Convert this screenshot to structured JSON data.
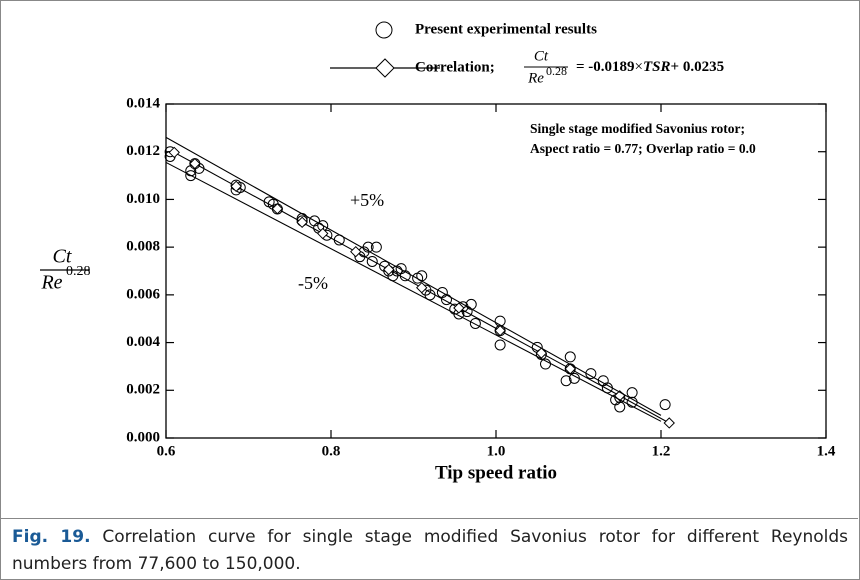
{
  "chart_data": {
    "type": "scatter",
    "x_label": "Tip speed ratio",
    "y_label": {
      "numerator": "Ct",
      "denominator": "Re",
      "exponent": "0.28"
    },
    "legend_formula": {
      "numerator": "Ct",
      "denominator": "Re",
      "exponent": "0.28",
      "rhs_parts": [
        "= -0.0189",
        "×",
        "TSR",
        "+ 0.0235"
      ]
    },
    "annotation_lines": [
      "Single stage modified Savonius rotor;",
      "Aspect ratio = 0.77; Overlap ratio = 0.0"
    ],
    "xlim": [
      0.6,
      1.4
    ],
    "ylim": [
      0,
      0.014
    ],
    "xticks": [
      0.6,
      0.8,
      {
        "value": 1.0,
        "label": "1.0"
      },
      1.2,
      1.4
    ],
    "yticks": [
      {
        "value": 0,
        "label": "0.000"
      },
      {
        "value": 0.002,
        "label": "0.002"
      },
      {
        "value": 0.004,
        "label": "0.004"
      },
      {
        "value": 0.006,
        "label": "0.006"
      },
      {
        "value": 0.008,
        "label": "0.008"
      },
      {
        "value": 0.01,
        "label": "0.010"
      },
      {
        "value": 0.012,
        "label": "0.012"
      },
      {
        "value": 0.014,
        "label": "0.014"
      }
    ],
    "series": [
      {
        "name": "Present experimental results",
        "style": "markers",
        "color": "#000000",
        "x": [
          0.605,
          0.605,
          0.63,
          0.63,
          0.635,
          0.64,
          0.685,
          0.685,
          0.69,
          0.725,
          0.73,
          0.735,
          0.765,
          0.765,
          0.78,
          0.785,
          0.79,
          0.795,
          0.81,
          0.835,
          0.84,
          0.845,
          0.855,
          0.85,
          0.865,
          0.87,
          0.875,
          0.88,
          0.885,
          0.89,
          0.905,
          0.91,
          0.915,
          0.92,
          0.935,
          0.94,
          0.95,
          0.955,
          0.96,
          0.965,
          0.97,
          0.975,
          1.005,
          1.005,
          1.005,
          1.05,
          1.055,
          1.06,
          1.085,
          1.09,
          1.09,
          1.095,
          1.115,
          1.13,
          1.135,
          1.145,
          1.15,
          1.15,
          1.165,
          1.165,
          1.205
        ],
        "values": [
          0.0118,
          0.012,
          0.011,
          0.0112,
          0.0115,
          0.0113,
          0.0104,
          0.0106,
          0.0105,
          0.0099,
          0.0098,
          0.0096,
          0.0091,
          0.0092,
          0.0091,
          0.0088,
          0.0089,
          0.0085,
          0.0083,
          0.0076,
          0.0078,
          0.008,
          0.008,
          0.0074,
          0.0072,
          0.007,
          0.0068,
          0.007,
          0.0071,
          0.0068,
          0.0067,
          0.0068,
          0.0062,
          0.006,
          0.0061,
          0.0058,
          0.0054,
          0.0052,
          0.0055,
          0.0053,
          0.0056,
          0.0048,
          0.0049,
          0.0045,
          0.0039,
          0.0038,
          0.0035,
          0.0031,
          0.0024,
          0.0034,
          0.0029,
          0.0025,
          0.0027,
          0.0024,
          0.0021,
          0.0016,
          0.0013,
          0.0017,
          0.0019,
          0.0015,
          0.0014
        ]
      },
      {
        "name": "Correlation;",
        "style": "line-markers",
        "color": "#000000",
        "x": [
          0.61,
          0.635,
          0.685,
          0.735,
          0.765,
          0.79,
          0.83,
          0.87,
          0.91,
          0.955,
          1.005,
          1.055,
          1.09,
          1.15,
          1.21
        ],
        "values": [
          0.01197,
          0.0115,
          0.01055,
          0.00961,
          0.00904,
          0.00857,
          0.00781,
          0.00706,
          0.0063,
          0.00545,
          0.0045,
          0.00356,
          0.0029,
          0.00177,
          0.00063
        ]
      },
      {
        "name": "+5%",
        "style": "line",
        "color": "#000000",
        "x": [
          0.6,
          1.2
        ],
        "values": [
          0.0126,
          0.00095
        ]
      },
      {
        "name": "-5%",
        "style": "line",
        "color": "#000000",
        "x": [
          0.6,
          1.2
        ],
        "values": [
          0.01155,
          0.0007
        ]
      }
    ]
  },
  "caption": {
    "label": "Fig. 19.",
    "text": "Correlation curve for single stage modified Savonius rotor for different Reynolds numbers from 77,600 to 150,000."
  }
}
